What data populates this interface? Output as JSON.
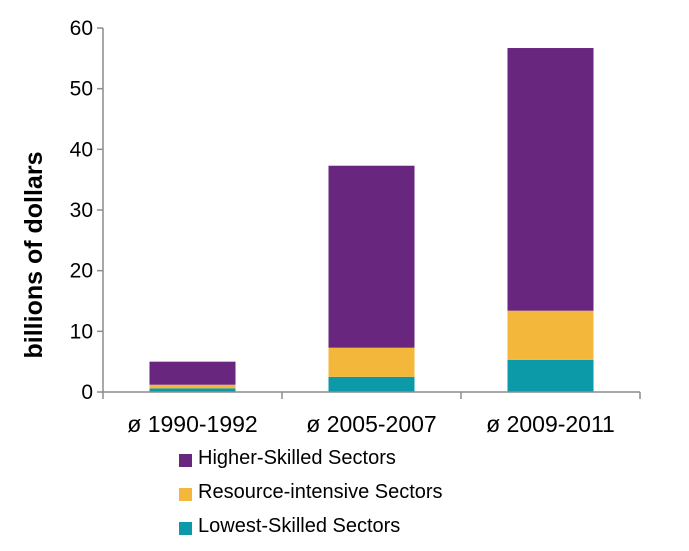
{
  "chart_data": {
    "type": "bar",
    "stacked": true,
    "categories": [
      "ø 1990-1992",
      "ø 2005-2007",
      "ø 2009-2011"
    ],
    "series": [
      {
        "name": "Lowest-Skilled Sectors",
        "values": [
          0.6,
          2.5,
          5.3
        ],
        "color": "#0c9aa8"
      },
      {
        "name": "Resource-intensive Sectors",
        "values": [
          0.6,
          4.8,
          8.1
        ],
        "color": "#f3b73b"
      },
      {
        "name": "Higher-Skilled Sectors",
        "values": [
          3.8,
          30.0,
          43.3
        ],
        "color": "#69267f"
      }
    ],
    "ylabel": "billions of dollars",
    "ylim": [
      0,
      60
    ],
    "yticks": [
      "0",
      "10",
      "20",
      "30",
      "40",
      "50",
      "60"
    ],
    "grid": false,
    "legend_position": "bottom",
    "legend_order": [
      "Higher-Skilled Sectors",
      "Resource-intensive Sectors",
      "Lowest-Skilled Sectors"
    ]
  }
}
